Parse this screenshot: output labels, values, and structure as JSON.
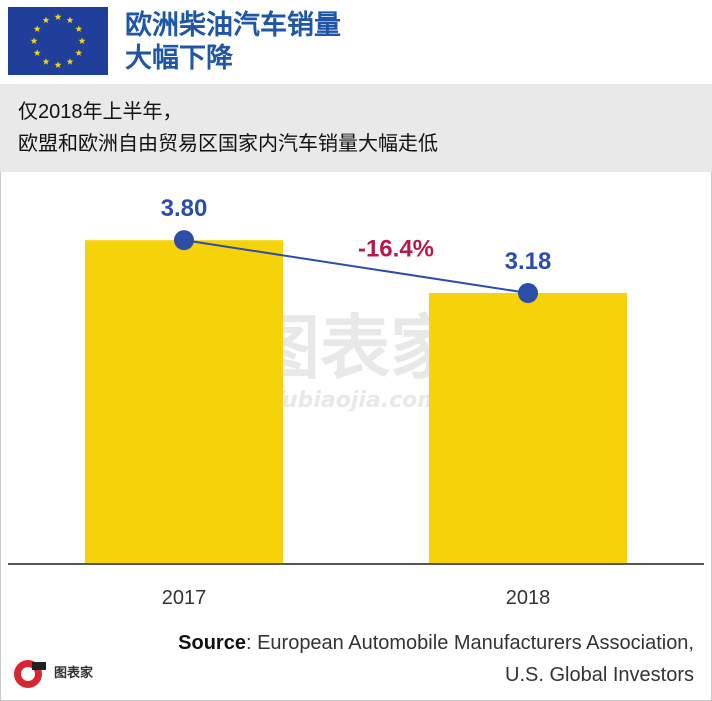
{
  "header": {
    "title_line1": "欧洲柴油汽车销量",
    "title_line2": "大幅下降",
    "flag_color": "#1f3f9a",
    "star_color": "#f5d50a"
  },
  "subtitle": {
    "line1": "仅2018年上半年，",
    "line2": "欧盟和欧洲自由贸易区国家内汽车销量大幅走低"
  },
  "chart_data": {
    "type": "bar",
    "categories": [
      "2017",
      "2018"
    ],
    "values": [
      3.8,
      3.18
    ],
    "value_labels": [
      "3.80",
      "3.18"
    ],
    "ylim": [
      0,
      4.6
    ],
    "bar_color": "#f5d20a",
    "line_color": "#2b4ea8",
    "change_label": "-16.4%",
    "change_color": "#b5174e",
    "grid": false
  },
  "source": {
    "label": "Source",
    "line1_rest": ": European Automobile Manufacturers Association,",
    "line2": "U.S. Global Investors"
  },
  "watermark": {
    "main": "图表家",
    "sub": "Tubiaojia.com"
  }
}
